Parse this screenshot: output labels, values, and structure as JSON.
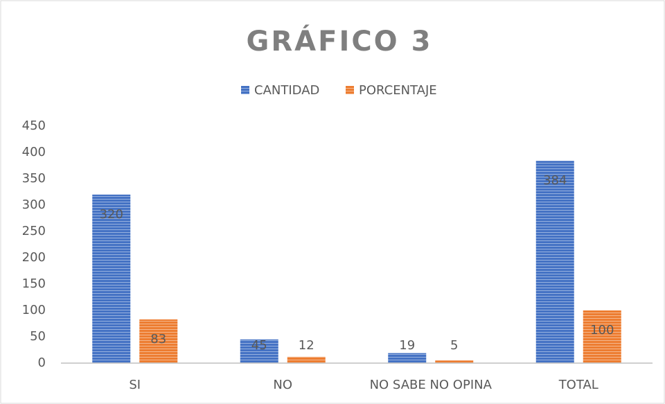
{
  "chart_data": {
    "type": "bar",
    "title": "GRÁFICO 3",
    "categories": [
      "SI",
      "NO",
      "NO SABE NO OPINA",
      "TOTAL"
    ],
    "series": [
      {
        "name": "CANTIDAD",
        "color": "#4472c4",
        "values": [
          320,
          45,
          19,
          384
        ]
      },
      {
        "name": "PORCENTAJE",
        "color": "#ed7d31",
        "values": [
          83,
          12,
          5,
          100
        ]
      }
    ],
    "ylim": [
      0,
      450
    ],
    "yticks": [
      0,
      50,
      100,
      150,
      200,
      250,
      300,
      350,
      400,
      450
    ],
    "grid": false,
    "legend": "top"
  }
}
